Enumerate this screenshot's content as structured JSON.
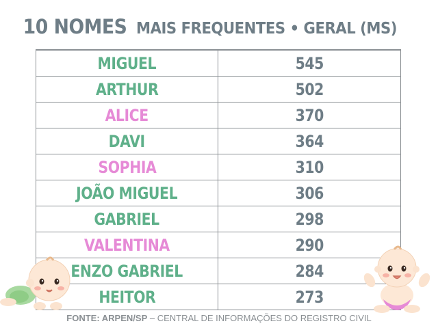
{
  "title": {
    "part1": "10 NOMES",
    "part2": "MAIS FREQUENTES • GERAL (MS)"
  },
  "colors": {
    "boy": "#5fb08a",
    "girl": "#e68ad6",
    "count": "#6e7d86",
    "border": "#8a8f93"
  },
  "rows": [
    {
      "name": "MIGUEL",
      "count": "545",
      "gender": "boy"
    },
    {
      "name": "ARTHUR",
      "count": "502",
      "gender": "boy"
    },
    {
      "name": "ALICE",
      "count": "370",
      "gender": "girl"
    },
    {
      "name": "DAVI",
      "count": "364",
      "gender": "boy"
    },
    {
      "name": "SOPHIA",
      "count": "310",
      "gender": "girl"
    },
    {
      "name": "JOÃO MIGUEL",
      "count": "306",
      "gender": "boy"
    },
    {
      "name": "GABRIEL",
      "count": "298",
      "gender": "boy"
    },
    {
      "name": "VALENTINA",
      "count": "290",
      "gender": "girl"
    },
    {
      "name": "ENZO GABRIEL",
      "count": "284",
      "gender": "boy"
    },
    {
      "name": "HEITOR",
      "count": "273",
      "gender": "boy"
    }
  ],
  "footer": {
    "source": "FONTE: ARPEN/SP",
    "rest": " – CENTRAL DE INFORMAÇÕES DO REGISTRO CIVIL"
  },
  "icons": {
    "left": "crawling-baby-icon",
    "right": "sitting-baby-icon"
  }
}
